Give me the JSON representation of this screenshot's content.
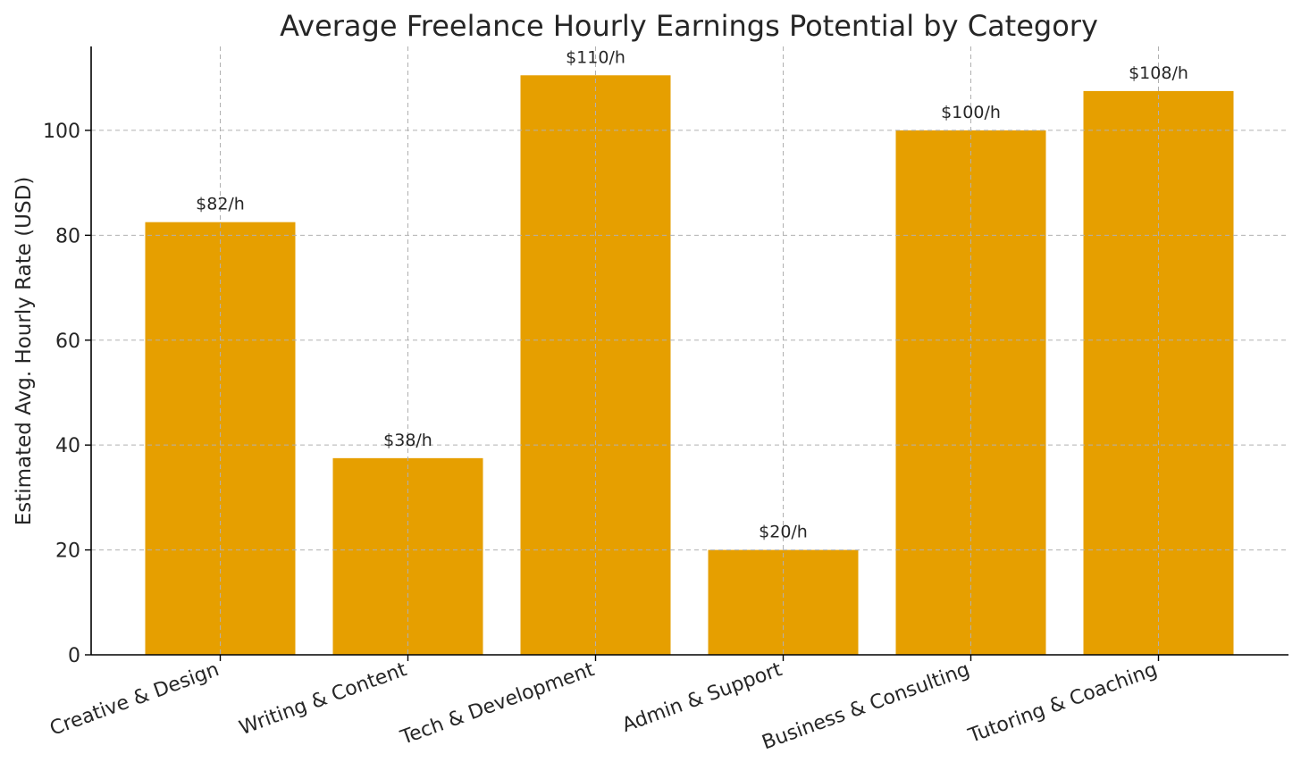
{
  "chart_data": {
    "type": "bar",
    "title": "Average Freelance Hourly Earnings Potential by Category",
    "xlabel": "",
    "ylabel": "Estimated Avg. Hourly Rate (USD)",
    "categories": [
      "Creative & Design",
      "Writing & Content",
      "Tech & Development",
      "Admin & Support",
      "Business & Consulting",
      "Tutoring & Coaching"
    ],
    "values": [
      82.5,
      37.5,
      110.5,
      20,
      100,
      107.5
    ],
    "data_labels": [
      "$82/h",
      "$38/h",
      "$110/h",
      "$20/h",
      "$100/h",
      "$108/h"
    ],
    "ylim": [
      0,
      116
    ],
    "yticks": [
      0,
      20,
      40,
      60,
      80,
      100
    ],
    "bar_color": "#E69F00",
    "grid": true,
    "grid_style": "dashed"
  }
}
